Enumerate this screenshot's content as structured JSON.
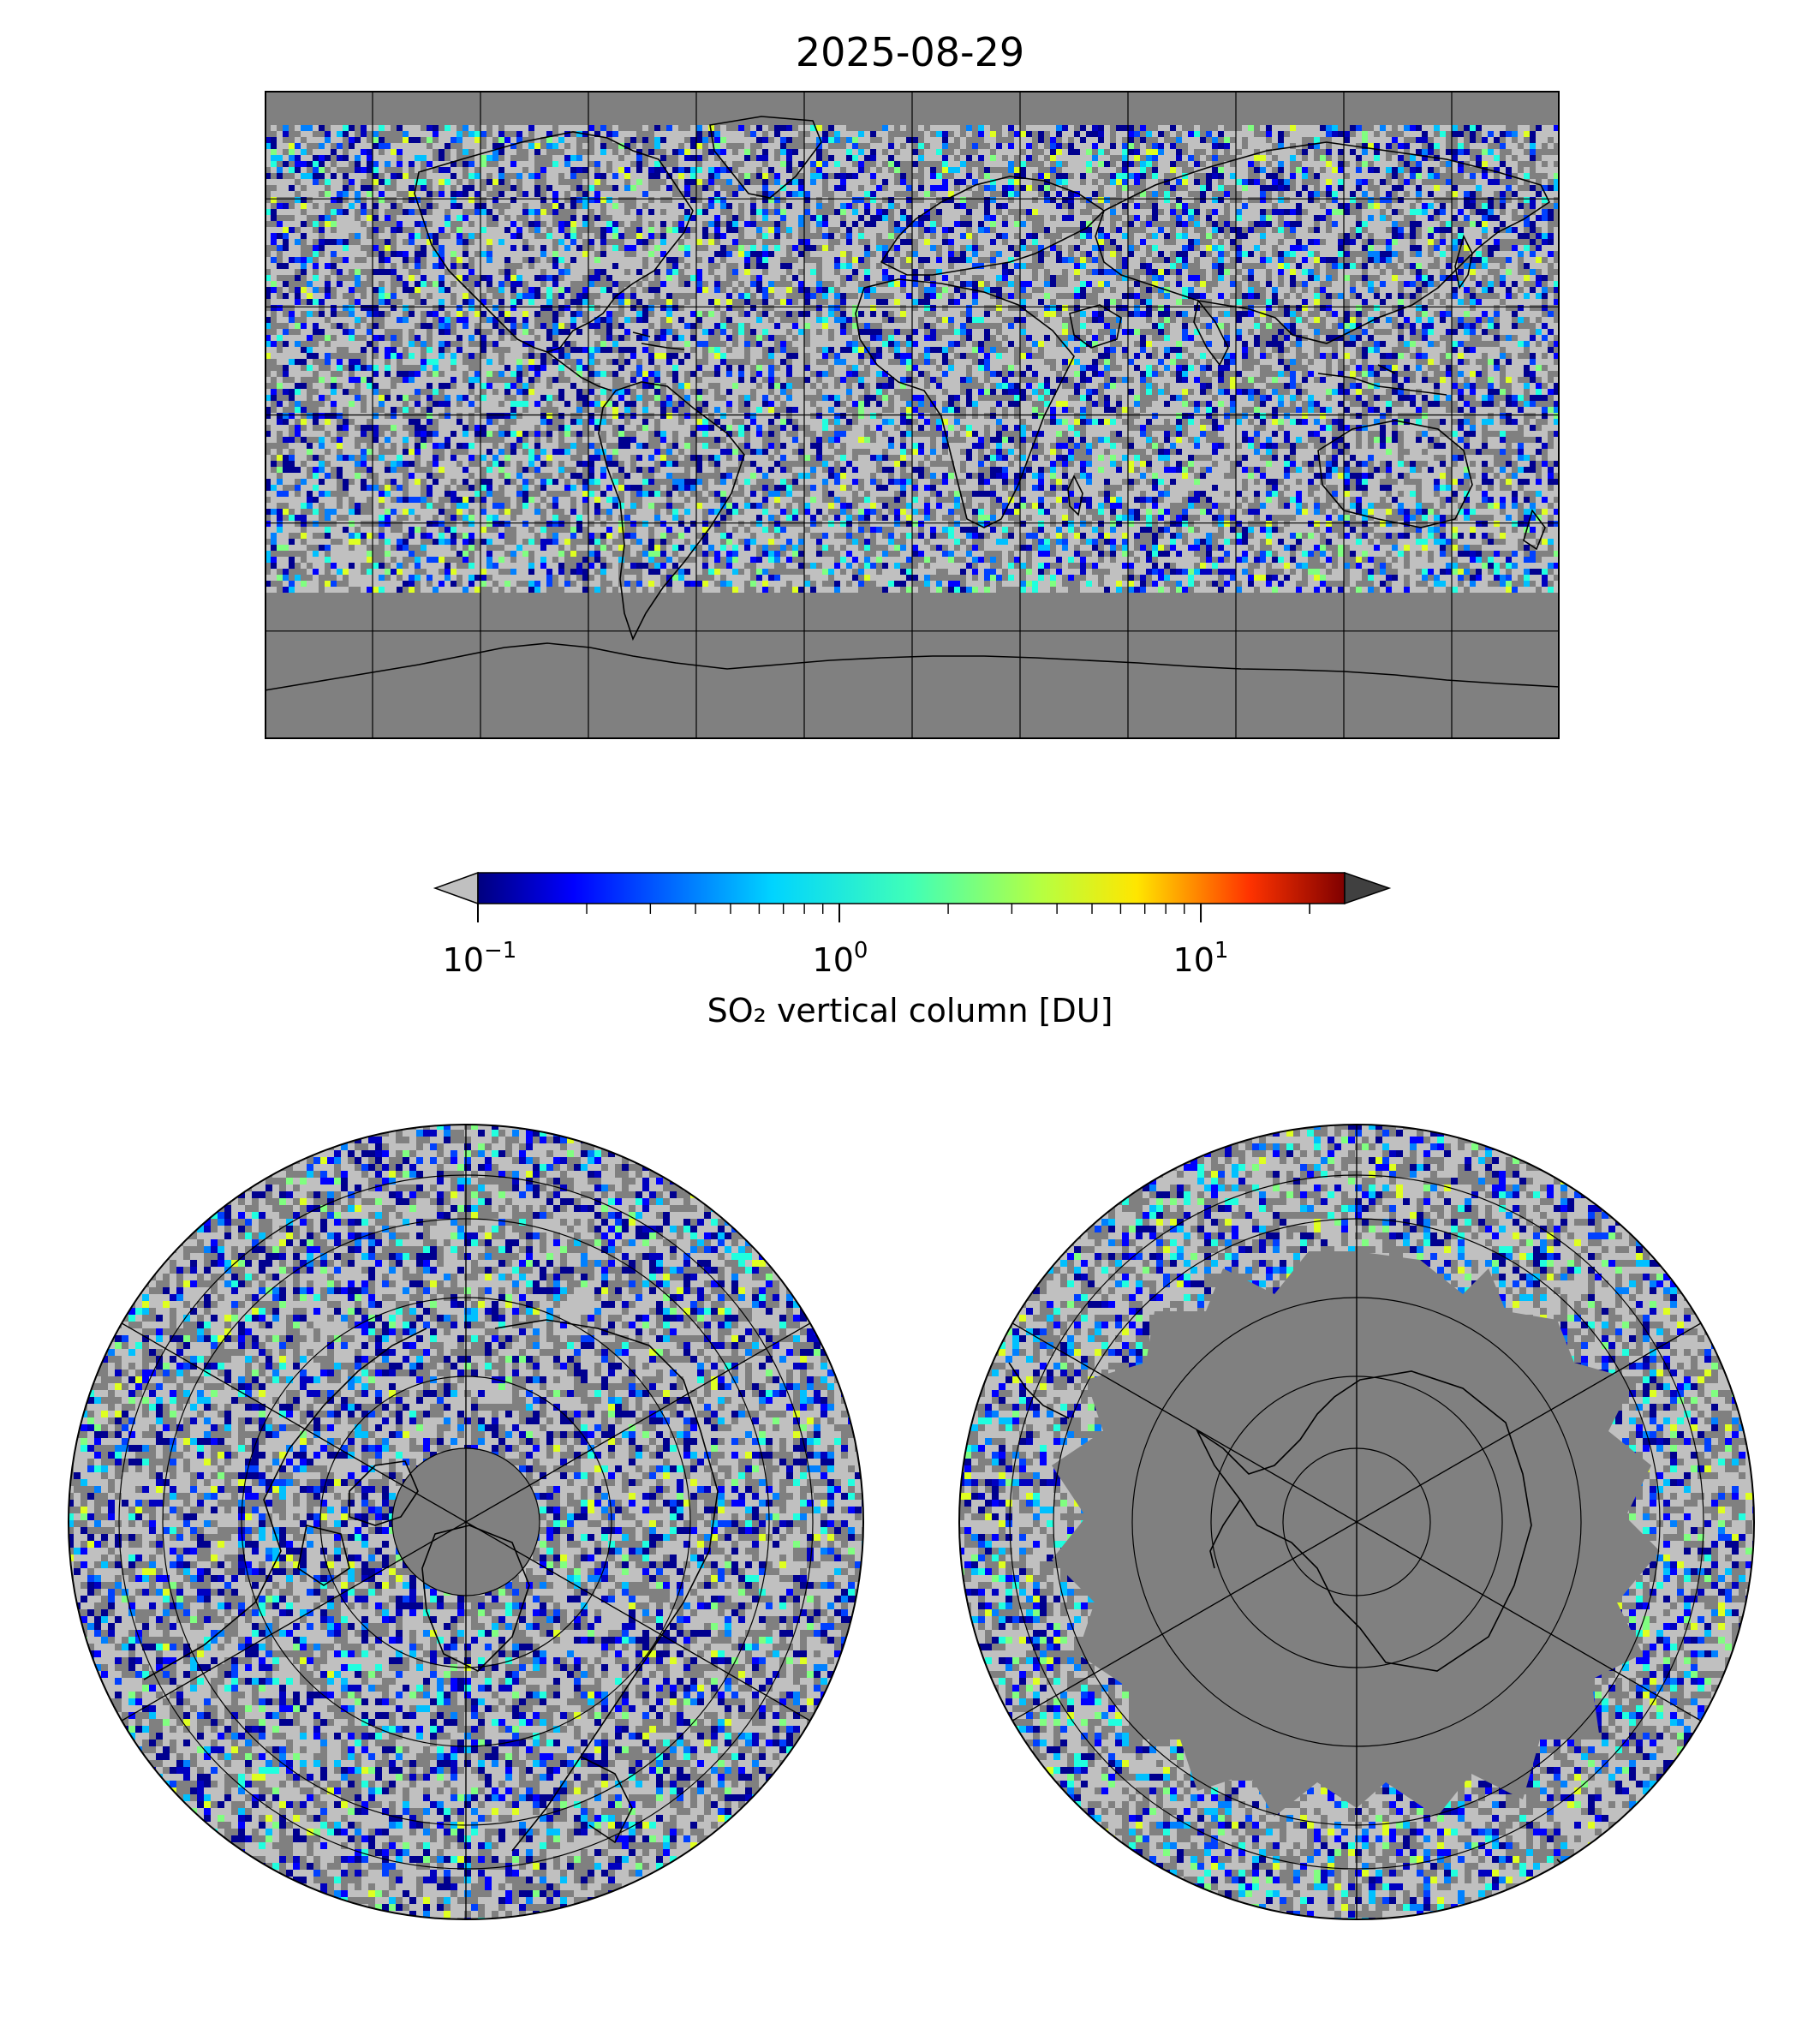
{
  "title": "2025-08-29",
  "colorbar": {
    "label": "SO₂ vertical column [DU]",
    "scale": "log",
    "range": [
      0.1,
      25
    ],
    "colormap": "jet",
    "extend": "both",
    "under_color": "#c0c0c0",
    "over_color": "#404040",
    "ticks": [
      {
        "base": "10",
        "exp": "−1",
        "value": 0.1
      },
      {
        "base": "10",
        "exp": "0",
        "value": 1
      },
      {
        "base": "10",
        "exp": "1",
        "value": 10
      }
    ]
  },
  "colors": {
    "no_data": "#808080",
    "below_range": "#c0c0c0",
    "coastline": "#000000",
    "gridline": "#000000"
  },
  "maps": {
    "world": {
      "projection": "plate-carree",
      "gridlines": true
    },
    "north_polar": {
      "projection": "north-polar-stereographic",
      "gridlines": true
    },
    "south_polar": {
      "projection": "south-polar-stereographic",
      "gridlines": true
    }
  }
}
